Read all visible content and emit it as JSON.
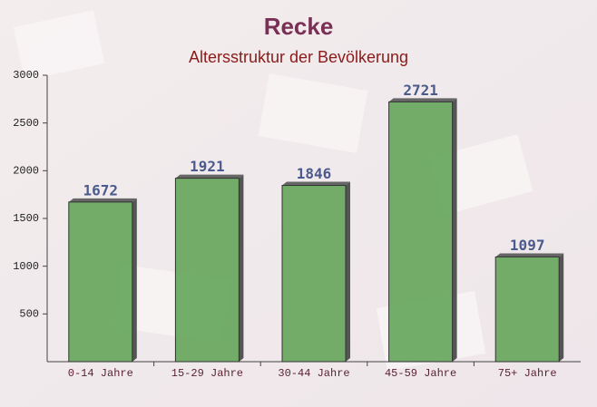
{
  "chart_data": {
    "type": "bar",
    "title": "Recke",
    "subtitle": "Altersstruktur der Bevölkerung",
    "categories": [
      "0-14 Jahre",
      "15-29 Jahre",
      "30-44 Jahre",
      "45-59 Jahre",
      "75+ Jahre"
    ],
    "values": [
      1672,
      1921,
      1846,
      2721,
      1097
    ],
    "color": "#6aa961",
    "ylim": [
      0,
      3000
    ],
    "yticks": [
      500,
      1000,
      1500,
      2000,
      2500,
      3000
    ],
    "grid": false
  }
}
